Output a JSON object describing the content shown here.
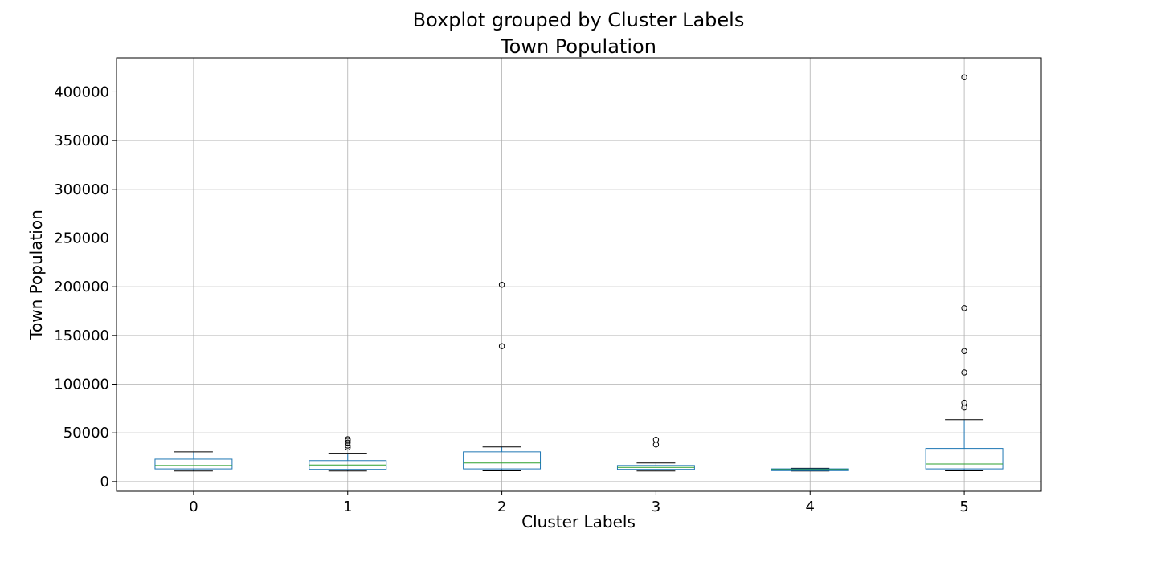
{
  "chart_data": {
    "type": "box",
    "suptitle": "Boxplot grouped by Cluster Labels",
    "title": "Town Population",
    "xlabel": "Cluster Labels",
    "ylabel": "Town Population",
    "ylim": [
      -10000,
      435000
    ],
    "yticks": [
      0,
      50000,
      100000,
      150000,
      200000,
      250000,
      300000,
      350000,
      400000
    ],
    "grid": true,
    "colors": {
      "box": "#1f77b4",
      "median": "#2ca02c",
      "whisker": "#1f77b4",
      "cap": "#000000",
      "flier": "#000000",
      "grid": "#b0b0b0"
    },
    "categories": [
      "0",
      "1",
      "2",
      "3",
      "4",
      "5"
    ],
    "boxes": [
      {
        "label": "0",
        "whislo": 10800,
        "q1": 13000,
        "med": 16500,
        "q3": 23000,
        "whishi": 30500,
        "fliers": []
      },
      {
        "label": "1",
        "whislo": 10800,
        "q1": 12500,
        "med": 17000,
        "q3": 21500,
        "whishi": 29000,
        "fliers": [
          35000,
          37000,
          40000,
          42000,
          43500
        ]
      },
      {
        "label": "2",
        "whislo": 11000,
        "q1": 13000,
        "med": 19000,
        "q3": 30500,
        "whishi": 35500,
        "fliers": [
          139000,
          202000
        ]
      },
      {
        "label": "3",
        "whislo": 10800,
        "q1": 12500,
        "med": 14500,
        "q3": 16500,
        "whishi": 19000,
        "fliers": [
          38000,
          43000
        ]
      },
      {
        "label": "4",
        "whislo": 10800,
        "q1": 11200,
        "med": 12200,
        "q3": 13000,
        "whishi": 13600,
        "fliers": []
      },
      {
        "label": "5",
        "whislo": 11000,
        "q1": 13000,
        "med": 18000,
        "q3": 34000,
        "whishi": 63500,
        "fliers": [
          76000,
          81000,
          112000,
          134000,
          178000,
          415000
        ]
      }
    ]
  }
}
